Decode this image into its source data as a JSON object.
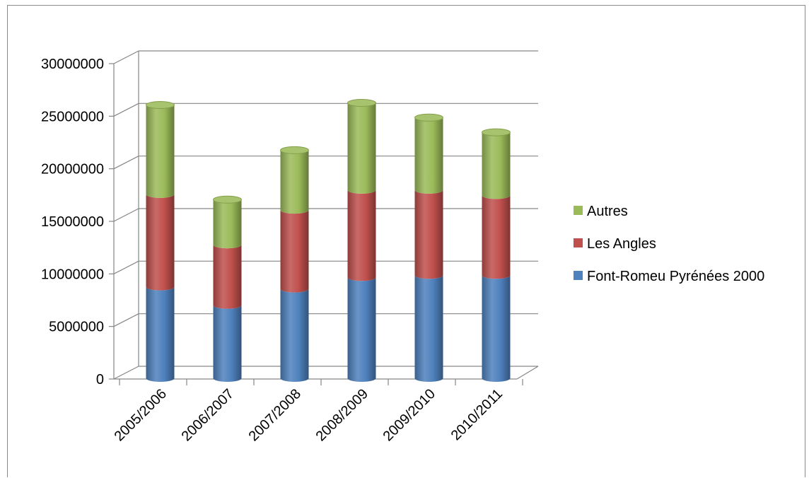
{
  "chart_data": {
    "type": "bar",
    "stacked": true,
    "style": "3d-cylinder",
    "title": "",
    "xlabel": "",
    "ylabel": "",
    "categories": [
      "2005/2006",
      "2006/2007",
      "2007/2008",
      "2008/2009",
      "2009/2010",
      "2010/2011"
    ],
    "series": [
      {
        "name": "Font-Romeu Pyrénées 2000",
        "color": "#4f81bd",
        "values": [
          8700000,
          6950000,
          8500000,
          9600000,
          9800000,
          9800000
        ]
      },
      {
        "name": "Les Angles",
        "color": "#c0504d",
        "values": [
          8800000,
          5750000,
          7500000,
          8300000,
          8100000,
          7600000
        ]
      },
      {
        "name": "Autres",
        "color": "#9bbb59",
        "values": [
          8500000,
          4300000,
          5700000,
          8300000,
          6900000,
          6000000
        ]
      }
    ],
    "ylim": [
      0,
      30000000
    ],
    "y_ticks": [
      "0",
      "5000000",
      "10000000",
      "15000000",
      "20000000",
      "25000000",
      "30000000"
    ],
    "y_tick_values": [
      0,
      5000000,
      10000000,
      15000000,
      20000000,
      25000000,
      30000000
    ],
    "grid": true,
    "legend_position": "right",
    "legend_order": [
      "Autres",
      "Les Angles",
      "Font-Romeu Pyrénées 2000"
    ]
  }
}
